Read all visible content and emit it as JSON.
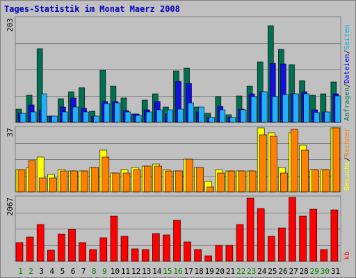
{
  "chart_data": {
    "title": "Tages-Statistik im Monat Maerz 2008",
    "type": "bar",
    "categories": [
      "1",
      "2",
      "3",
      "4",
      "5",
      "6",
      "7",
      "8",
      "9",
      "10",
      "11",
      "12",
      "13",
      "14",
      "15",
      "16",
      "17",
      "18",
      "19",
      "20",
      "21",
      "22",
      "23",
      "24",
      "25",
      "26",
      "27",
      "28",
      "29",
      "30",
      "31"
    ],
    "weekend_days": [
      "1",
      "2",
      "8",
      "9",
      "15",
      "16",
      "22",
      "23",
      "29",
      "30"
    ],
    "colors": {
      "weekday_label": "#008000",
      "weekend_label": "#008000",
      "workday_label": "#000000"
    },
    "panels": [
      {
        "id": "top",
        "ymax_label": "203",
        "ymax": 203,
        "legend": [
          {
            "text": "Anfragen",
            "color": "#007050"
          },
          {
            "text": "/",
            "color": "#000000"
          },
          {
            "text": "Dateien",
            "color": "#0000ff"
          },
          {
            "text": "/",
            "color": "#000000"
          },
          {
            "text": "Seiten",
            "color": "#00b0f0"
          }
        ],
        "series": [
          {
            "name": "Anfragen",
            "color": "#007050",
            "values": [
              26,
              53,
              144,
              12,
              46,
              60,
              68,
              21,
              102,
              70,
              47,
              16,
              43,
              56,
              30,
              100,
              106,
              30,
              18,
              50,
              15,
              52,
              70,
              118,
              188,
              142,
              112,
              81,
              53,
              55,
              78
            ]
          },
          {
            "name": "Dateien",
            "color": "#1010e0",
            "values": [
              18,
              34,
              24,
              12,
              30,
              47,
              27,
              12,
              40,
              40,
              23,
              16,
              25,
              40,
              16,
              80,
              76,
              20,
              10,
              31,
              10,
              26,
              55,
              60,
              115,
              114,
              56,
              60,
              24,
              20,
              55
            ]
          },
          {
            "name": "Seiten",
            "color": "#20b0ff",
            "values": [
              18,
              20,
              55,
              12,
              20,
              30,
              20,
              12,
              36,
              38,
              20,
              14,
              20,
              25,
              25,
              26,
              38,
              30,
              10,
              25,
              10,
              25,
              50,
              60,
              50,
              54,
              55,
              55,
              19,
              20,
              52
            ]
          }
        ]
      },
      {
        "id": "middle",
        "ymax_label": "37",
        "ymax": 37,
        "legend": [
          {
            "text": "Besuche",
            "color": "#ffff00"
          },
          {
            "text": "/",
            "color": "#000000"
          },
          {
            "text": "Rechner",
            "color": "#ff8000"
          }
        ],
        "series": [
          {
            "name": "Besuche",
            "color": "#ffff00",
            "values": [
              13,
              14,
              20,
              10,
              13,
              12,
              12,
              14,
              24,
              11,
              13,
              14,
              15,
              16,
              13,
              12,
              19,
              14,
              6,
              13,
              12,
              12,
              12,
              37,
              34,
              14,
              34,
              27,
              13,
              13,
              37
            ]
          },
          {
            "name": "Rechner",
            "color": "#ff8000",
            "values": [
              13,
              18,
              8,
              8,
              12,
              12,
              12,
              14,
              20,
              11,
              11,
              13,
              15,
              15,
              12,
              12,
              19,
              14,
              3,
              11,
              12,
              12,
              12,
              33,
              32,
              11,
              36,
              24,
              13,
              13,
              37
            ]
          }
        ]
      },
      {
        "id": "bottom",
        "ymax_label": "2067",
        "ymax": 2067,
        "legend": [
          {
            "text": "kb",
            "color": "#ff0000"
          }
        ],
        "series": [
          {
            "name": "kb",
            "color": "#ff0000",
            "values": [
              600,
              790,
              1180,
              370,
              880,
              1040,
              600,
              390,
              770,
              1460,
              800,
              400,
              390,
              900,
              850,
              1320,
              620,
              380,
              190,
              510,
              520,
              1180,
              2040,
              1700,
              820,
              1080,
              2067,
              1450,
              1690,
              390,
              1670
            ]
          }
        ]
      }
    ]
  }
}
